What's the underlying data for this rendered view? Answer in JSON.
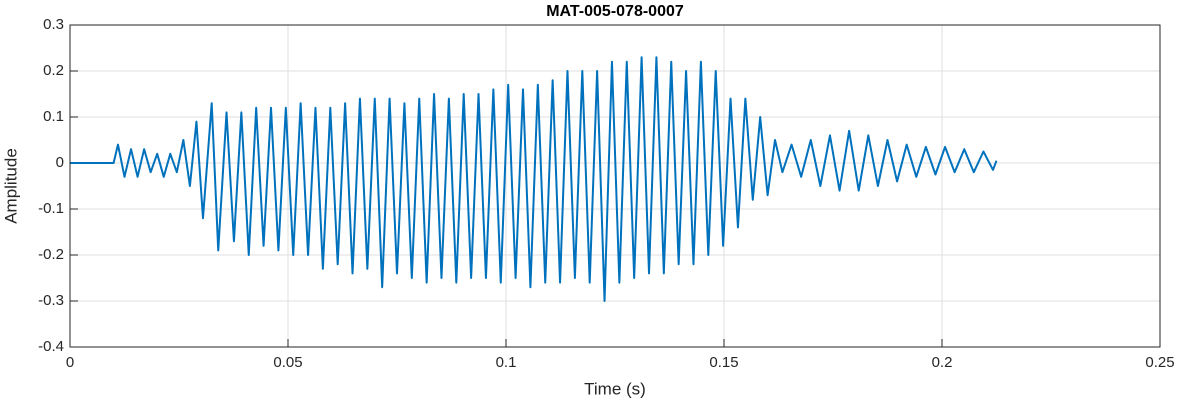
{
  "chart_data": {
    "type": "line",
    "title": "MAT-005-078-0007",
    "xlabel": "Time (s)",
    "ylabel": "Amplitude",
    "color": "#0072bd",
    "grid": true,
    "xlim": [
      0,
      0.25
    ],
    "xticks": [
      0,
      0.05,
      0.1,
      0.15,
      0.2,
      0.25
    ],
    "ylim": [
      -0.4,
      0.3
    ],
    "yticks": [
      -0.4,
      -0.3,
      -0.2,
      -0.1,
      0,
      0.1,
      0.2,
      0.3
    ],
    "x": [
      0,
      0.005,
      0.01,
      0.011,
      0.0125,
      0.014,
      0.0155,
      0.017,
      0.0185,
      0.02,
      0.0215,
      0.023,
      0.0245,
      0.026,
      0.0275,
      0.029,
      0.0305,
      0.0325,
      0.034,
      0.0359,
      0.0376,
      0.0393,
      0.041,
      0.0427,
      0.0444,
      0.0461,
      0.0478,
      0.0495,
      0.0512,
      0.0529,
      0.0546,
      0.0563,
      0.058,
      0.0597,
      0.0614,
      0.0631,
      0.0648,
      0.0665,
      0.0682,
      0.0699,
      0.0716,
      0.0733,
      0.075,
      0.0767,
      0.0784,
      0.0801,
      0.0818,
      0.0835,
      0.0852,
      0.0869,
      0.0886,
      0.0903,
      0.092,
      0.0937,
      0.0954,
      0.0971,
      0.0988,
      0.1005,
      0.1022,
      0.1039,
      0.1056,
      0.1073,
      0.109,
      0.1107,
      0.1124,
      0.1141,
      0.1158,
      0.1175,
      0.1192,
      0.1209,
      0.1226,
      0.1243,
      0.126,
      0.1277,
      0.1294,
      0.1311,
      0.1328,
      0.1345,
      0.1362,
      0.1379,
      0.1396,
      0.1413,
      0.143,
      0.1447,
      0.1464,
      0.1481,
      0.1498,
      0.1515,
      0.1532,
      0.1549,
      0.1566,
      0.1583,
      0.16,
      0.1617,
      0.1634,
      0.1655,
      0.1677,
      0.1699,
      0.1721,
      0.1743,
      0.1765,
      0.1787,
      0.1809,
      0.1831,
      0.1853,
      0.1875,
      0.1897,
      0.1919,
      0.1941,
      0.1963,
      0.1985,
      0.2007,
      0.2029,
      0.2051,
      0.2073,
      0.2095,
      0.2117,
      0.2125
    ],
    "values": [
      0,
      0,
      0,
      0.04,
      -0.03,
      0.03,
      -0.03,
      0.03,
      -0.02,
      0.02,
      -0.03,
      0.02,
      -0.02,
      0.05,
      -0.05,
      0.09,
      -0.12,
      0.13,
      -0.19,
      0.11,
      -0.17,
      0.11,
      -0.2,
      0.12,
      -0.18,
      0.12,
      -0.19,
      0.12,
      -0.2,
      0.13,
      -0.2,
      0.12,
      -0.23,
      0.12,
      -0.22,
      0.13,
      -0.24,
      0.14,
      -0.23,
      0.14,
      -0.27,
      0.14,
      -0.24,
      0.13,
      -0.25,
      0.14,
      -0.26,
      0.15,
      -0.25,
      0.14,
      -0.26,
      0.15,
      -0.25,
      0.15,
      -0.25,
      0.16,
      -0.26,
      0.17,
      -0.25,
      0.16,
      -0.27,
      0.17,
      -0.26,
      0.18,
      -0.26,
      0.2,
      -0.25,
      0.2,
      -0.26,
      0.2,
      -0.3,
      0.22,
      -0.26,
      0.22,
      -0.25,
      0.23,
      -0.24,
      0.23,
      -0.24,
      0.22,
      -0.22,
      0.2,
      -0.22,
      0.22,
      -0.2,
      0.2,
      -0.18,
      0.14,
      -0.14,
      0.14,
      -0.08,
      0.1,
      -0.07,
      0.05,
      -0.02,
      0.04,
      -0.03,
      0.05,
      -0.05,
      0.06,
      -0.06,
      0.07,
      -0.06,
      0.06,
      -0.05,
      0.05,
      -0.04,
      0.04,
      -0.03,
      0.035,
      -0.025,
      0.035,
      -0.02,
      0.03,
      -0.02,
      0.025,
      -0.015,
      0.005
    ]
  }
}
